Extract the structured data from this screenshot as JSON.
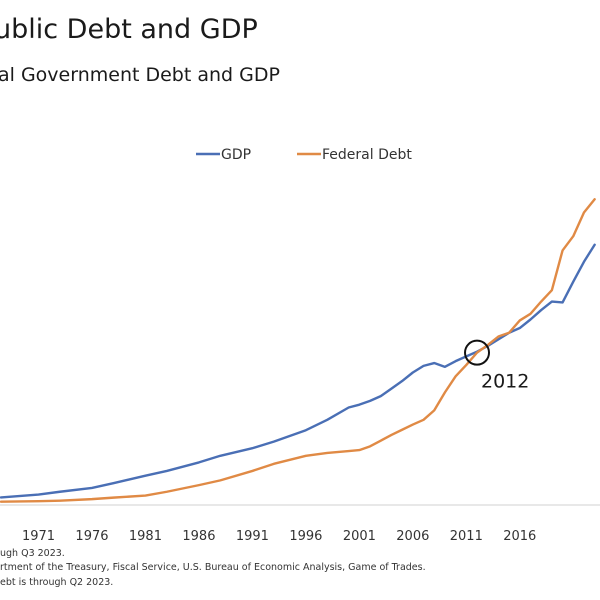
{
  "header": {
    "title": "ublic Debt and GDP",
    "subtitle": "al Government Debt and GDP"
  },
  "chart_data": {
    "type": "line",
    "title": "ublic Debt and GDP",
    "subtitle": "al Government Debt and GDP",
    "xlabel": "",
    "ylabel": "",
    "grid": false,
    "legend_position": "top-center",
    "x_ticks": [
      "1971",
      "1976",
      "1981",
      "1986",
      "1991",
      "1996",
      "2001",
      "2006",
      "2011",
      "2016"
    ],
    "xlim": [
      1967.4,
      2023.5
    ],
    "series": [
      {
        "name": "GDP",
        "color": "#4a6fb5",
        "points": [
          [
            1967.5,
            0.8
          ],
          [
            1971,
            1.1
          ],
          [
            1973,
            1.4
          ],
          [
            1976,
            1.8
          ],
          [
            1978,
            2.3
          ],
          [
            1981,
            3.1
          ],
          [
            1983,
            3.6
          ],
          [
            1986,
            4.5
          ],
          [
            1988,
            5.2
          ],
          [
            1991,
            6.0
          ],
          [
            1993,
            6.7
          ],
          [
            1996,
            7.9
          ],
          [
            1998,
            9.0
          ],
          [
            2000,
            10.3
          ],
          [
            2001,
            10.6
          ],
          [
            2002,
            11.0
          ],
          [
            2003,
            11.5
          ],
          [
            2004,
            12.3
          ],
          [
            2005,
            13.1
          ],
          [
            2006,
            14.0
          ],
          [
            2007,
            14.7
          ],
          [
            2008,
            15.0
          ],
          [
            2009,
            14.6
          ],
          [
            2010,
            15.2
          ],
          [
            2011,
            15.7
          ],
          [
            2012,
            16.2
          ],
          [
            2013,
            16.8
          ],
          [
            2014,
            17.5
          ],
          [
            2015,
            18.2
          ],
          [
            2016,
            18.7
          ],
          [
            2017,
            19.6
          ],
          [
            2018,
            20.6
          ],
          [
            2019,
            21.5
          ],
          [
            2020,
            21.4
          ],
          [
            2021,
            23.6
          ],
          [
            2022,
            25.7
          ],
          [
            2023,
            27.5
          ]
        ]
      },
      {
        "name": "Federal Debt",
        "color": "#e08a45",
        "points": [
          [
            1967.5,
            0.35
          ],
          [
            1971,
            0.4
          ],
          [
            1973,
            0.46
          ],
          [
            1976,
            0.62
          ],
          [
            1978,
            0.78
          ],
          [
            1981,
            1.0
          ],
          [
            1983,
            1.4
          ],
          [
            1986,
            2.1
          ],
          [
            1988,
            2.6
          ],
          [
            1991,
            3.6
          ],
          [
            1993,
            4.35
          ],
          [
            1996,
            5.2
          ],
          [
            1998,
            5.5
          ],
          [
            2000,
            5.7
          ],
          [
            2001,
            5.8
          ],
          [
            2002,
            6.2
          ],
          [
            2003,
            6.8
          ],
          [
            2004,
            7.4
          ],
          [
            2005,
            7.95
          ],
          [
            2006,
            8.5
          ],
          [
            2007,
            9.0
          ],
          [
            2008,
            10.0
          ],
          [
            2009,
            11.9
          ],
          [
            2010,
            13.6
          ],
          [
            2011,
            14.8
          ],
          [
            2012,
            16.1
          ],
          [
            2013,
            16.9
          ],
          [
            2014,
            17.8
          ],
          [
            2015,
            18.2
          ],
          [
            2016,
            19.5
          ],
          [
            2017,
            20.2
          ],
          [
            2018,
            21.5
          ],
          [
            2019,
            22.7
          ],
          [
            2020,
            26.9
          ],
          [
            2021,
            28.4
          ],
          [
            2022,
            30.9
          ],
          [
            2023,
            32.3
          ]
        ]
      }
    ],
    "annotations": [
      {
        "text": "2012",
        "x": 2012,
        "y": 16.1,
        "marker": "circle"
      }
    ]
  },
  "footnotes": [
    "ugh Q3 2023.",
    "rtment of the Treasury, Fiscal Service, U.S. Bureau of Economic Analysis, Game of Trades.",
    "ebt is through Q2 2023."
  ]
}
